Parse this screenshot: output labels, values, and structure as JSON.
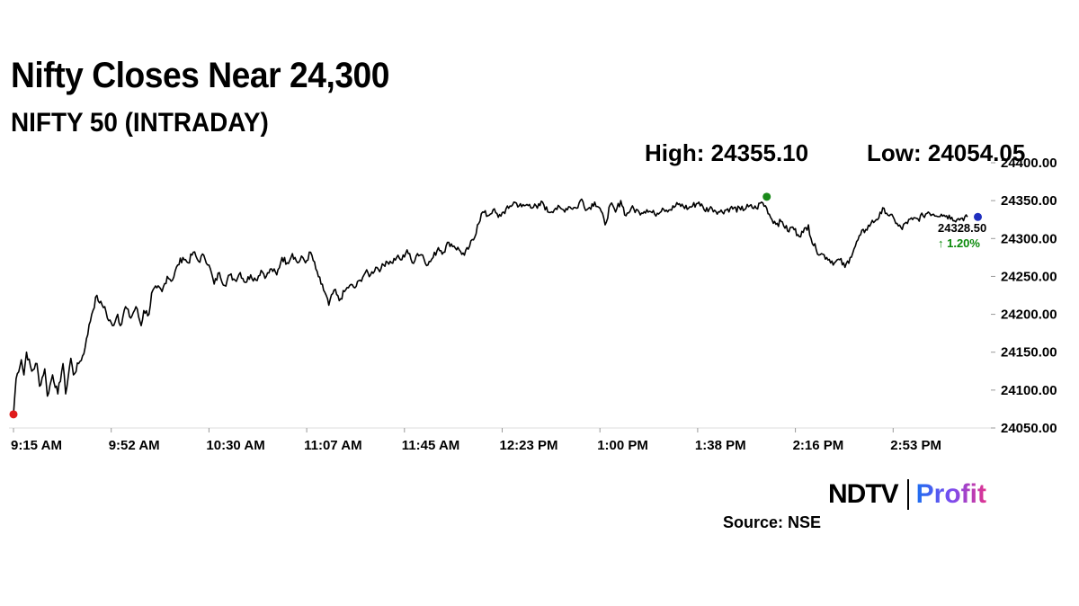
{
  "header": {
    "title": "Nifty Closes Near 24,300",
    "subtitle": "NIFTY 50 (INTRADAY)",
    "high_text": "High: 24355.10",
    "low_text": "Low: 24054.05"
  },
  "chart_data": {
    "type": "line",
    "title": "Nifty Closes Near 24,300",
    "subtitle": "NIFTY 50 (INTRADAY)",
    "x_ticks": [
      "9:15 AM",
      "9:52 AM",
      "10:30 AM",
      "11:07 AM",
      "11:45 AM",
      "12:23 PM",
      "1:00 PM",
      "1:38 PM",
      "2:16 PM",
      "2:53 PM"
    ],
    "x_range": [
      "9:15",
      "15:30"
    ],
    "y_ticks": [
      "24400.00",
      "24350.00",
      "24300.00",
      "24250.00",
      "24200.00",
      "24150.00",
      "24100.00",
      "24050.00"
    ],
    "ylim": [
      24050,
      24400
    ],
    "grid": false,
    "high": 24355.1,
    "low": 24054.05,
    "series": [
      {
        "color": "#000000",
        "points": [
          [
            "9:15",
            24068
          ],
          [
            "9:16",
            24115
          ],
          [
            "9:18",
            24140
          ],
          [
            "9:19",
            24120
          ],
          [
            "9:20",
            24150
          ],
          [
            "9:22",
            24125
          ],
          [
            "9:24",
            24135
          ],
          [
            "9:25",
            24105
          ],
          [
            "9:27",
            24128
          ],
          [
            "9:28",
            24092
          ],
          [
            "9:30",
            24120
          ],
          [
            "9:32",
            24095
          ],
          [
            "9:34",
            24135
          ],
          [
            "9:35",
            24095
          ],
          [
            "9:37",
            24142
          ],
          [
            "9:38",
            24120
          ],
          [
            "9:40",
            24135
          ],
          [
            "9:42",
            24148
          ],
          [
            "9:43",
            24168
          ],
          [
            "9:45",
            24200
          ],
          [
            "9:47",
            24225
          ],
          [
            "9:48",
            24215
          ],
          [
            "9:50",
            24210
          ],
          [
            "9:51",
            24195
          ],
          [
            "9:53",
            24185
          ],
          [
            "9:55",
            24200
          ],
          [
            "9:56",
            24185
          ],
          [
            "9:58",
            24210
          ],
          [
            "10:00",
            24195
          ],
          [
            "10:02",
            24210
          ],
          [
            "10:04",
            24185
          ],
          [
            "10:05",
            24205
          ],
          [
            "10:07",
            24200
          ],
          [
            "10:08",
            24228
          ],
          [
            "10:10",
            24235
          ],
          [
            "10:12",
            24230
          ],
          [
            "10:14",
            24250
          ],
          [
            "10:16",
            24245
          ],
          [
            "10:18",
            24265
          ],
          [
            "10:20",
            24275
          ],
          [
            "10:22",
            24268
          ],
          [
            "10:24",
            24282
          ],
          [
            "10:26",
            24270
          ],
          [
            "10:28",
            24278
          ],
          [
            "10:30",
            24265
          ],
          [
            "10:32",
            24240
          ],
          [
            "10:34",
            24255
          ],
          [
            "10:36",
            24238
          ],
          [
            "10:38",
            24252
          ],
          [
            "10:40",
            24245
          ],
          [
            "10:42",
            24255
          ],
          [
            "10:44",
            24242
          ],
          [
            "10:46",
            24252
          ],
          [
            "10:48",
            24245
          ],
          [
            "10:50",
            24258
          ],
          [
            "10:52",
            24250
          ],
          [
            "10:54",
            24260
          ],
          [
            "10:56",
            24252
          ],
          [
            "10:58",
            24275
          ],
          [
            "11:00",
            24268
          ],
          [
            "11:02",
            24280
          ],
          [
            "11:04",
            24268
          ],
          [
            "11:06",
            24275
          ],
          [
            "11:07",
            24268
          ],
          [
            "11:09",
            24282
          ],
          [
            "11:11",
            24260
          ],
          [
            "11:13",
            24240
          ],
          [
            "11:15",
            24225
          ],
          [
            "11:16",
            24212
          ],
          [
            "11:18",
            24232
          ],
          [
            "11:20",
            24218
          ],
          [
            "11:22",
            24230
          ],
          [
            "11:24",
            24238
          ],
          [
            "11:26",
            24235
          ],
          [
            "11:28",
            24245
          ],
          [
            "11:30",
            24255
          ],
          [
            "11:32",
            24252
          ],
          [
            "11:34",
            24262
          ],
          [
            "11:36",
            24260
          ],
          [
            "11:38",
            24270
          ],
          [
            "11:40",
            24268
          ],
          [
            "11:42",
            24275
          ],
          [
            "11:44",
            24272
          ],
          [
            "11:46",
            24285
          ],
          [
            "11:48",
            24268
          ],
          [
            "11:50",
            24280
          ],
          [
            "11:52",
            24278
          ],
          [
            "11:54",
            24265
          ],
          [
            "11:56",
            24275
          ],
          [
            "11:58",
            24288
          ],
          [
            "12:00",
            24282
          ],
          [
            "12:02",
            24295
          ],
          [
            "12:04",
            24290
          ],
          [
            "12:06",
            24285
          ],
          [
            "12:08",
            24278
          ],
          [
            "12:10",
            24290
          ],
          [
            "12:12",
            24302
          ],
          [
            "12:13",
            24318
          ],
          [
            "12:15",
            24335
          ],
          [
            "12:17",
            24330
          ],
          [
            "12:19",
            24338
          ],
          [
            "12:21",
            24328
          ],
          [
            "12:23",
            24335
          ],
          [
            "12:25",
            24340
          ],
          [
            "12:27",
            24348
          ],
          [
            "12:30",
            24342
          ],
          [
            "12:33",
            24345
          ],
          [
            "12:36",
            24340
          ],
          [
            "12:38",
            24348
          ],
          [
            "12:40",
            24335
          ],
          [
            "12:43",
            24340
          ],
          [
            "12:46",
            24338
          ],
          [
            "12:48",
            24342
          ],
          [
            "12:51",
            24340
          ],
          [
            "12:53",
            24352
          ],
          [
            "12:55",
            24338
          ],
          [
            "12:58",
            24348
          ],
          [
            "13:00",
            24340
          ],
          [
            "13:02",
            24318
          ],
          [
            "13:04",
            24345
          ],
          [
            "13:06",
            24335
          ],
          [
            "13:08",
            24350
          ],
          [
            "13:10",
            24330
          ],
          [
            "13:12",
            24340
          ],
          [
            "13:15",
            24335
          ],
          [
            "13:18",
            24338
          ],
          [
            "13:21",
            24332
          ],
          [
            "13:24",
            24340
          ],
          [
            "13:27",
            24338
          ],
          [
            "13:30",
            24345
          ],
          [
            "13:34",
            24340
          ],
          [
            "13:38",
            24348
          ],
          [
            "13:40",
            24338
          ],
          [
            "13:43",
            24340
          ],
          [
            "13:46",
            24335
          ],
          [
            "13:50",
            24340
          ],
          [
            "13:54",
            24338
          ],
          [
            "13:57",
            24342
          ],
          [
            "14:00",
            24340
          ],
          [
            "14:02",
            24348
          ],
          [
            "14:04",
            24340
          ],
          [
            "14:06",
            24325
          ],
          [
            "14:08",
            24320
          ],
          [
            "14:10",
            24322
          ],
          [
            "14:12",
            24310
          ],
          [
            "14:14",
            24315
          ],
          [
            "14:16",
            24305
          ],
          [
            "14:18",
            24308
          ],
          [
            "14:20",
            24318
          ],
          [
            "14:21",
            24300
          ],
          [
            "14:23",
            24285
          ],
          [
            "14:25",
            24280
          ],
          [
            "14:27",
            24275
          ],
          [
            "14:30",
            24268
          ],
          [
            "14:32",
            24272
          ],
          [
            "14:34",
            24262
          ],
          [
            "14:36",
            24275
          ],
          [
            "14:38",
            24290
          ],
          [
            "14:40",
            24305
          ],
          [
            "14:42",
            24312
          ],
          [
            "14:44",
            24320
          ],
          [
            "14:46",
            24325
          ],
          [
            "14:48",
            24333
          ],
          [
            "14:49",
            24340
          ],
          [
            "14:51",
            24330
          ],
          [
            "14:53",
            24325
          ],
          [
            "14:54",
            24320
          ],
          [
            "14:56",
            24312
          ],
          [
            "14:57",
            24320
          ],
          [
            "15:00",
            24325
          ],
          [
            "15:02",
            24326
          ],
          [
            "15:04",
            24330
          ],
          [
            "15:06",
            24335
          ],
          [
            "15:08",
            24332
          ],
          [
            "15:11",
            24332
          ],
          [
            "15:13",
            24330
          ],
          [
            "15:15",
            24328
          ],
          [
            "15:17",
            24325
          ],
          [
            "15:19",
            24327
          ],
          [
            "15:21",
            24328.5
          ]
        ]
      }
    ],
    "markers": [
      {
        "name": "open",
        "time": "9:15",
        "value": 24068,
        "color": "#e01b1b"
      },
      {
        "name": "high",
        "time": "14:04",
        "value": 24355.1,
        "color": "#1a8a1a"
      },
      {
        "name": "last",
        "time": "15:25",
        "value": 24328.5,
        "color": "#1f2fbf"
      }
    ],
    "annotations": {
      "last_price": "24328.50",
      "change": "↑ 1.20%"
    }
  },
  "branding": {
    "ndtv": "NDTV",
    "profit": "Profit",
    "source": "Source: NSE"
  }
}
